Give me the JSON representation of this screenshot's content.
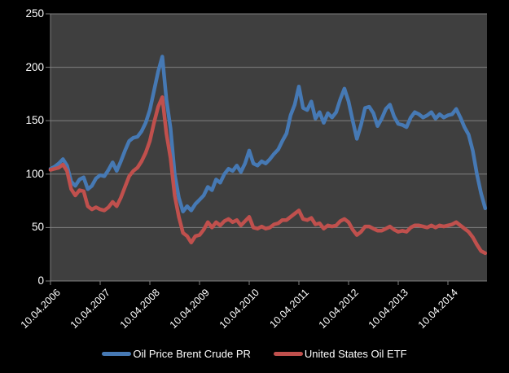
{
  "colors": {
    "background": "#000000",
    "plot_background": "#3F3F3F",
    "gridline": "#808080",
    "axis_line": "#808080",
    "axis_text": "#FFFFFF"
  },
  "chart_data": {
    "type": "line",
    "grid": true,
    "legend_position": "bottom-center",
    "points_per_year": 12,
    "x_axis": {
      "tick_labels": [
        "10.04.2006",
        "10.04.2007",
        "10.04.2008",
        "10.04.2009",
        "10.04.2010",
        "10.04.2011",
        "10.04.2012",
        "10.04.2013",
        "10.04.2014"
      ],
      "tick_interval_months": 12
    },
    "y_axis": {
      "ticks": [
        0,
        50,
        100,
        150,
        200,
        250
      ],
      "lim": [
        0,
        250
      ]
    },
    "series": [
      {
        "name": "Oil Price Brent Crude PR",
        "color": "#4679B4",
        "values": [
          105,
          107,
          110,
          114,
          108,
          93,
          89,
          95,
          97,
          86,
          89,
          96,
          99,
          98,
          104,
          111,
          103,
          112,
          122,
          131,
          134,
          135,
          140,
          148,
          160,
          178,
          196,
          210,
          170,
          143,
          100,
          78,
          65,
          70,
          66,
          72,
          76,
          80,
          88,
          85,
          95,
          92,
          100,
          105,
          103,
          108,
          102,
          110,
          122,
          110,
          108,
          112,
          110,
          114,
          119,
          123,
          131,
          138,
          155,
          165,
          182,
          162,
          160,
          168,
          152,
          158,
          148,
          157,
          153,
          158,
          170,
          180,
          168,
          150,
          133,
          146,
          162,
          163,
          157,
          145,
          152,
          161,
          165,
          154,
          147,
          146,
          144,
          153,
          158,
          156,
          153,
          155,
          158,
          152,
          156,
          153,
          155,
          156,
          161,
          153,
          144,
          137,
          122,
          100,
          82,
          68
        ]
      },
      {
        "name": "United States Oil ETF",
        "color": "#C0504D",
        "values": [
          104,
          105,
          106,
          109,
          103,
          86,
          80,
          85,
          84,
          70,
          67,
          69,
          67,
          66,
          69,
          74,
          70,
          78,
          88,
          98,
          103,
          106,
          112,
          120,
          131,
          148,
          163,
          172,
          138,
          115,
          80,
          60,
          45,
          42,
          36,
          42,
          43,
          48,
          55,
          50,
          55,
          52,
          56,
          58,
          55,
          57,
          52,
          56,
          60,
          50,
          49,
          51,
          49,
          50,
          53,
          54,
          57,
          57,
          60,
          63,
          66,
          58,
          57,
          59,
          53,
          54,
          49,
          52,
          51,
          52,
          56,
          58,
          55,
          48,
          43,
          46,
          51,
          51,
          49,
          47,
          47,
          49,
          51,
          48,
          46,
          47,
          46,
          50,
          52,
          52,
          51,
          50,
          52,
          50,
          52,
          51,
          52,
          53,
          55,
          52,
          49,
          46,
          41,
          34,
          28,
          26
        ]
      }
    ]
  }
}
